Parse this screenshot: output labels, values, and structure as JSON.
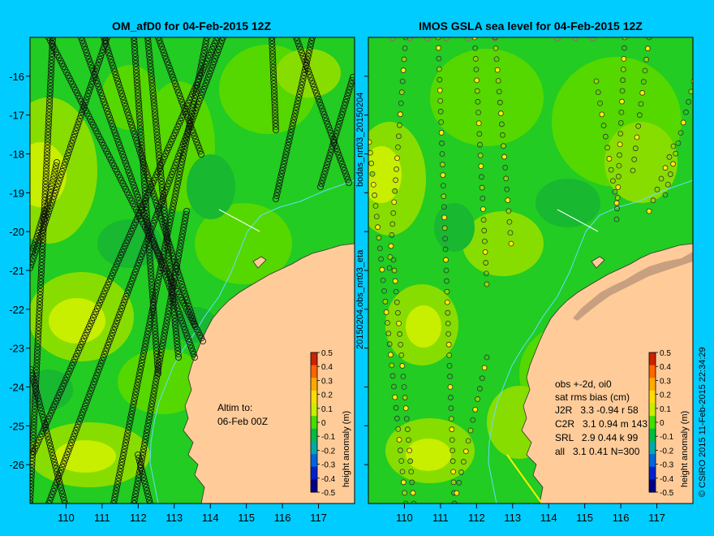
{
  "left_panel": {
    "title": "OM_afD0 for 04-Feb-2015 12Z",
    "annotation_line1": "Altim to:",
    "annotation_line2": "06-Feb 00Z",
    "colorbar_label": "height anomaly (m)"
  },
  "right_panel": {
    "title": "IMOS GSLA sea level  for 04-Feb-2015 12Z",
    "side_label_top": "bodas_nrt03_20150204",
    "side_label_bottom": "20150204.obs_nrt03_eta",
    "stats": {
      "line1": "obs +-2d, oi0",
      "line2": "sat rms bias (cm)",
      "rows": [
        "J2R   3.3 -0.94 r 58",
        "C2R   3.1 0.94 m 143",
        "SRL   2.9 0.44 k 99",
        "all   3.1 0.41 N=300"
      ]
    },
    "colorbar_label": "height anomaly (m)"
  },
  "copyright": "© CSIRO 2015  11-Feb-2015 22:34:29",
  "axes": {
    "x_ticks": [
      "110",
      "111",
      "112",
      "113",
      "114",
      "115",
      "116",
      "117"
    ],
    "y_ticks": [
      "-16",
      "-17",
      "-18",
      "-19",
      "-20",
      "-21",
      "-22",
      "-23",
      "-24",
      "-25",
      "-26"
    ],
    "x_range": [
      109,
      118
    ],
    "y_range": [
      -15,
      -27
    ]
  },
  "colorbar": {
    "ticks": [
      "0.5",
      "0.4",
      "0.3",
      "0.2",
      "0.1",
      "0",
      "-0.1",
      "-0.2",
      "-0.3",
      "-0.4",
      "-0.5"
    ],
    "colors": [
      "#cc2200",
      "#ff6600",
      "#ffaa00",
      "#ffdd00",
      "#c8ee00",
      "#44dd00",
      "#00bb44",
      "#00aaaa",
      "#0066dd",
      "#0022cc",
      "#000088"
    ]
  },
  "colors": {
    "background": "#00ccff",
    "ocean": "#22cc22",
    "land": "#ffcc99",
    "land_alt": "#c8a080"
  }
}
